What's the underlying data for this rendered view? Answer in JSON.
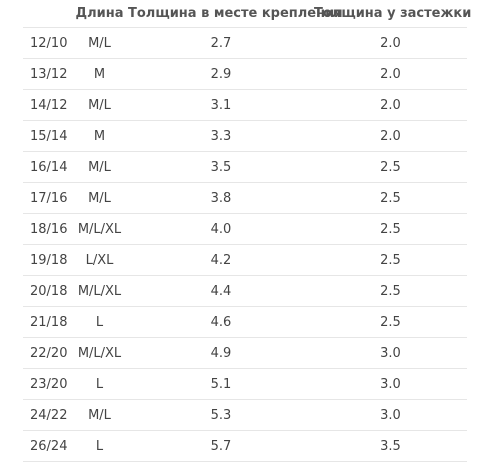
{
  "table": {
    "headers": {
      "size": "",
      "length": "Длина",
      "attach_thickness": "Толщина в месте крепления",
      "clasp_thickness": "Толщина у застежки"
    },
    "rows": [
      {
        "size": "12/10",
        "length": "M/L",
        "attach": "2.7",
        "clasp": "2.0"
      },
      {
        "size": "13/12",
        "length": "M",
        "attach": "2.9",
        "clasp": "2.0"
      },
      {
        "size": "14/12",
        "length": "M/L",
        "attach": "3.1",
        "clasp": "2.0"
      },
      {
        "size": "15/14",
        "length": "M",
        "attach": "3.3",
        "clasp": "2.0"
      },
      {
        "size": "16/14",
        "length": "M/L",
        "attach": "3.5",
        "clasp": "2.5"
      },
      {
        "size": "17/16",
        "length": "M/L",
        "attach": "3.8",
        "clasp": "2.5"
      },
      {
        "size": "18/16",
        "length": "M/L/XL",
        "attach": "4.0",
        "clasp": "2.5"
      },
      {
        "size": "19/18",
        "length": "L/XL",
        "attach": "4.2",
        "clasp": "2.5"
      },
      {
        "size": "20/18",
        "length": "M/L/XL",
        "attach": "4.4",
        "clasp": "2.5"
      },
      {
        "size": "21/18",
        "length": "L",
        "attach": "4.6",
        "clasp": "2.5"
      },
      {
        "size": "22/20",
        "length": "M/L/XL",
        "attach": "4.9",
        "clasp": "3.0"
      },
      {
        "size": "23/20",
        "length": "L",
        "attach": "5.1",
        "clasp": "3.0"
      },
      {
        "size": "24/22",
        "length": "M/L",
        "attach": "5.3",
        "clasp": "3.0"
      },
      {
        "size": "26/24",
        "length": "L",
        "attach": "5.7",
        "clasp": "3.5"
      }
    ]
  }
}
